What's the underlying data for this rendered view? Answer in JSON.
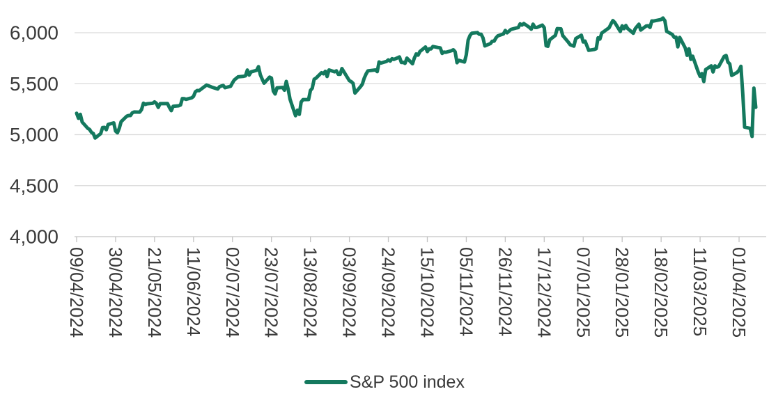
{
  "chart_data": {
    "type": "line",
    "grid": "horizontal-only",
    "legend_position": "bottom-center",
    "ylim": [
      4000,
      6200
    ],
    "y_ticks": [
      4000,
      4500,
      5000,
      5500,
      6000
    ],
    "y_tick_labels": [
      "4,000",
      "4,500",
      "5,000",
      "5,500",
      "6,000"
    ],
    "x_tick_labels": [
      "09/04/2024",
      "30/04/2024",
      "21/05/2024",
      "11/06/2024",
      "02/07/2024",
      "23/07/2024",
      "13/08/2024",
      "03/09/2024",
      "24/09/2024",
      "15/10/2024",
      "05/11/2024",
      "26/11/2024",
      "17/12/2024",
      "07/01/2025",
      "28/01/2025",
      "18/02/2025",
      "11/03/2025",
      "01/04/2025"
    ],
    "colors": {
      "line": "#14795e",
      "grid": "#d9d9d9",
      "axis": "#c3c3c3",
      "label": "#3a3a3a"
    },
    "legend": [
      {
        "label": "S&P 500 index",
        "color": "#14795e"
      }
    ],
    "series": [
      {
        "name": "S&P 500 index",
        "dates": [
          "2024-04-09",
          "2024-04-10",
          "2024-04-11",
          "2024-04-12",
          "2024-04-15",
          "2024-04-16",
          "2024-04-17",
          "2024-04-18",
          "2024-04-19",
          "2024-04-22",
          "2024-04-23",
          "2024-04-24",
          "2024-04-25",
          "2024-04-26",
          "2024-04-29",
          "2024-04-30",
          "2024-05-01",
          "2024-05-02",
          "2024-05-03",
          "2024-05-06",
          "2024-05-07",
          "2024-05-08",
          "2024-05-09",
          "2024-05-10",
          "2024-05-13",
          "2024-05-14",
          "2024-05-15",
          "2024-05-16",
          "2024-05-17",
          "2024-05-20",
          "2024-05-21",
          "2024-05-22",
          "2024-05-23",
          "2024-05-24",
          "2024-05-28",
          "2024-05-29",
          "2024-05-30",
          "2024-05-31",
          "2024-06-03",
          "2024-06-04",
          "2024-06-05",
          "2024-06-06",
          "2024-06-07",
          "2024-06-10",
          "2024-06-11",
          "2024-06-12",
          "2024-06-13",
          "2024-06-14",
          "2024-06-17",
          "2024-06-18",
          "2024-06-20",
          "2024-06-21",
          "2024-06-24",
          "2024-06-25",
          "2024-06-26",
          "2024-06-27",
          "2024-06-28",
          "2024-07-01",
          "2024-07-02",
          "2024-07-03",
          "2024-07-05",
          "2024-07-08",
          "2024-07-09",
          "2024-07-10",
          "2024-07-11",
          "2024-07-12",
          "2024-07-15",
          "2024-07-16",
          "2024-07-17",
          "2024-07-18",
          "2024-07-19",
          "2024-07-22",
          "2024-07-23",
          "2024-07-24",
          "2024-07-25",
          "2024-07-26",
          "2024-07-29",
          "2024-07-30",
          "2024-07-31",
          "2024-08-01",
          "2024-08-02",
          "2024-08-05",
          "2024-08-06",
          "2024-08-07",
          "2024-08-08",
          "2024-08-09",
          "2024-08-12",
          "2024-08-13",
          "2024-08-14",
          "2024-08-15",
          "2024-08-16",
          "2024-08-19",
          "2024-08-20",
          "2024-08-21",
          "2024-08-22",
          "2024-08-23",
          "2024-08-26",
          "2024-08-27",
          "2024-08-28",
          "2024-08-29",
          "2024-08-30",
          "2024-09-03",
          "2024-09-04",
          "2024-09-05",
          "2024-09-06",
          "2024-09-09",
          "2024-09-10",
          "2024-09-11",
          "2024-09-12",
          "2024-09-13",
          "2024-09-16",
          "2024-09-17",
          "2024-09-18",
          "2024-09-19",
          "2024-09-20",
          "2024-09-23",
          "2024-09-24",
          "2024-09-25",
          "2024-09-26",
          "2024-09-27",
          "2024-09-30",
          "2024-10-01",
          "2024-10-02",
          "2024-10-03",
          "2024-10-04",
          "2024-10-07",
          "2024-10-08",
          "2024-10-09",
          "2024-10-10",
          "2024-10-11",
          "2024-10-14",
          "2024-10-15",
          "2024-10-16",
          "2024-10-17",
          "2024-10-18",
          "2024-10-21",
          "2024-10-22",
          "2024-10-23",
          "2024-10-24",
          "2024-10-25",
          "2024-10-28",
          "2024-10-29",
          "2024-10-30",
          "2024-10-31",
          "2024-11-01",
          "2024-11-04",
          "2024-11-05",
          "2024-11-06",
          "2024-11-07",
          "2024-11-08",
          "2024-11-11",
          "2024-11-12",
          "2024-11-13",
          "2024-11-14",
          "2024-11-15",
          "2024-11-18",
          "2024-11-19",
          "2024-11-20",
          "2024-11-21",
          "2024-11-22",
          "2024-11-25",
          "2024-11-26",
          "2024-11-27",
          "2024-11-29",
          "2024-12-02",
          "2024-12-03",
          "2024-12-04",
          "2024-12-05",
          "2024-12-06",
          "2024-12-09",
          "2024-12-10",
          "2024-12-11",
          "2024-12-12",
          "2024-12-13",
          "2024-12-16",
          "2024-12-17",
          "2024-12-18",
          "2024-12-19",
          "2024-12-20",
          "2024-12-23",
          "2024-12-24",
          "2024-12-26",
          "2024-12-27",
          "2024-12-30",
          "2024-12-31",
          "2025-01-02",
          "2025-01-03",
          "2025-01-06",
          "2025-01-07",
          "2025-01-08",
          "2025-01-10",
          "2025-01-13",
          "2025-01-14",
          "2025-01-15",
          "2025-01-16",
          "2025-01-17",
          "2025-01-21",
          "2025-01-22",
          "2025-01-23",
          "2025-01-24",
          "2025-01-27",
          "2025-01-28",
          "2025-01-29",
          "2025-01-30",
          "2025-01-31",
          "2025-02-03",
          "2025-02-04",
          "2025-02-05",
          "2025-02-06",
          "2025-02-07",
          "2025-02-10",
          "2025-02-11",
          "2025-02-12",
          "2025-02-13",
          "2025-02-14",
          "2025-02-18",
          "2025-02-19",
          "2025-02-20",
          "2025-02-21",
          "2025-02-24",
          "2025-02-25",
          "2025-02-26",
          "2025-02-27",
          "2025-02-28",
          "2025-03-03",
          "2025-03-04",
          "2025-03-05",
          "2025-03-06",
          "2025-03-07",
          "2025-03-10",
          "2025-03-11",
          "2025-03-12",
          "2025-03-13",
          "2025-03-14",
          "2025-03-17",
          "2025-03-18",
          "2025-03-19",
          "2025-03-20",
          "2025-03-21",
          "2025-03-24",
          "2025-03-25",
          "2025-03-26",
          "2025-03-27",
          "2025-03-28",
          "2025-03-31",
          "2025-04-01",
          "2025-04-02",
          "2025-04-03",
          "2025-04-04",
          "2025-04-07",
          "2025-04-08",
          "2025-04-09",
          "2025-04-10"
        ],
        "values": [
          5209.9,
          5160.6,
          5199.1,
          5123.4,
          5061.8,
          5051.4,
          5022.2,
          5011.1,
          4967.2,
          5010.6,
          5070.6,
          5071.6,
          5048.4,
          5100.0,
          5116.2,
          5035.7,
          5018.4,
          5064.2,
          5127.8,
          5180.7,
          5187.7,
          5187.7,
          5214.1,
          5222.7,
          5221.4,
          5246.7,
          5308.2,
          5297.1,
          5303.3,
          5308.1,
          5321.4,
          5307.0,
          5267.8,
          5304.7,
          5306.0,
          5267.0,
          5235.5,
          5277.5,
          5283.4,
          5291.3,
          5354.0,
          5353.0,
          5347.0,
          5360.8,
          5375.3,
          5421.0,
          5433.7,
          5431.6,
          5473.2,
          5487.0,
          5473.2,
          5464.6,
          5447.9,
          5469.3,
          5477.9,
          5482.9,
          5460.5,
          5475.1,
          5509.0,
          5537.0,
          5567.2,
          5572.9,
          5577.0,
          5633.9,
          5584.5,
          5615.4,
          5631.2,
          5667.2,
          5588.3,
          5544.6,
          5505.0,
          5564.4,
          5555.7,
          5427.1,
          5399.2,
          5459.1,
          5463.5,
          5436.4,
          5522.3,
          5446.7,
          5346.6,
          5186.3,
          5240.0,
          5199.5,
          5319.3,
          5344.2,
          5344.4,
          5434.4,
          5455.2,
          5543.2,
          5554.3,
          5608.3,
          5597.1,
          5620.9,
          5570.6,
          5634.6,
          5616.8,
          5625.8,
          5592.2,
          5592.0,
          5648.4,
          5528.9,
          5520.1,
          5503.4,
          5408.4,
          5471.1,
          5495.5,
          5554.1,
          5595.8,
          5626.0,
          5633.1,
          5634.6,
          5618.3,
          5713.6,
          5702.6,
          5718.6,
          5732.9,
          5722.3,
          5745.4,
          5738.2,
          5762.5,
          5708.8,
          5709.5,
          5699.9,
          5751.1,
          5695.9,
          5751.1,
          5792.0,
          5780.1,
          5815.0,
          5859.9,
          5815.3,
          5842.5,
          5841.5,
          5864.7,
          5854.0,
          5851.2,
          5797.4,
          5809.9,
          5808.1,
          5823.5,
          5832.9,
          5813.7,
          5705.5,
          5728.8,
          5712.7,
          5782.8,
          5929.0,
          5973.1,
          5995.5,
          6001.4,
          5984.0,
          5985.4,
          5949.2,
          5870.6,
          5893.6,
          5917.0,
          5917.1,
          5948.7,
          5969.3,
          5987.4,
          6021.6,
          5998.7,
          6032.4,
          6047.2,
          6049.9,
          6086.5,
          6075.1,
          6090.3,
          6052.9,
          6034.9,
          6084.2,
          6051.3,
          6051.1,
          6074.1,
          6050.6,
          5872.2,
          5867.1,
          5930.9,
          5974.1,
          6040.0,
          6037.6,
          5970.8,
          5906.9,
          5881.6,
          5868.6,
          5942.5,
          5975.4,
          5909.0,
          5918.3,
          5827.0,
          5836.2,
          5842.9,
          5949.9,
          5937.3,
          5996.7,
          6049.2,
          6086.4,
          6118.7,
          6101.2,
          6012.3,
          6067.7,
          6039.3,
          6071.2,
          6040.5,
          5994.6,
          6037.9,
          6061.5,
          6083.6,
          6026.0,
          6066.4,
          6068.5,
          6052.0,
          6115.1,
          6114.6,
          6129.6,
          6144.2,
          6117.5,
          6013.1,
          5983.3,
          5955.3,
          5956.1,
          5861.6,
          5954.5,
          5849.7,
          5778.2,
          5842.6,
          5738.5,
          5770.2,
          5614.6,
          5572.1,
          5599.3,
          5521.5,
          5638.9,
          5675.1,
          5614.7,
          5675.3,
          5662.9,
          5667.6,
          5767.6,
          5776.7,
          5712.2,
          5693.3,
          5580.9,
          5611.9,
          5633.1,
          5671.0,
          5396.5,
          5074.1,
          5062.3,
          4982.8,
          5456.9,
          5268.1
        ]
      }
    ]
  }
}
